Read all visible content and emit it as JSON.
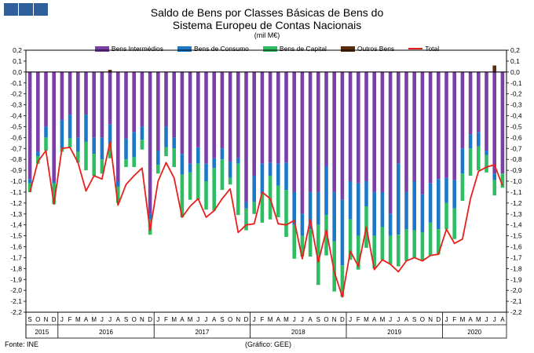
{
  "title_line1": "Saldo de Bens por Classes Básicas de Bens do",
  "title_line2": "Sistema Europeu de Contas Nacionais",
  "subtitle": "(mil M€)",
  "source": "Fonte: INE",
  "credit": "(Gráfico: GEE)",
  "colors": {
    "intermedios": "#7b3fa8",
    "consumo": "#1e78c8",
    "capital": "#2ebd63",
    "outros": "#5a2d0c",
    "total": "#e8201c",
    "logo": "#2e5e9c"
  },
  "chart_data": {
    "type": "bar",
    "stacked": true,
    "ylim": [
      -2.2,
      0.2
    ],
    "yticks": [
      "0,2",
      "0,1",
      "0,0",
      "-0,1",
      "-0,2",
      "-0,3",
      "-0,4",
      "-0,5",
      "-0,6",
      "-0,7",
      "-0,8",
      "-0,9",
      "-1,0",
      "-1,1",
      "-1,2",
      "-1,3",
      "-1,4",
      "-1,5",
      "-1,6",
      "-1,7",
      "-1,8",
      "-1,9",
      "-2,0",
      "-2,1",
      "-2,2"
    ],
    "legend": [
      "Bens Intermédios",
      "Bens de Consumo",
      "Bens de Capital",
      "Outros Bens",
      "Total"
    ],
    "categories": [
      "S",
      "O",
      "N",
      "D",
      "J",
      "F",
      "M",
      "A",
      "M",
      "J",
      "J",
      "A",
      "S",
      "O",
      "N",
      "D",
      "J",
      "F",
      "M",
      "A",
      "M",
      "J",
      "J",
      "A",
      "S",
      "O",
      "N",
      "D",
      "J",
      "F",
      "M",
      "A",
      "M",
      "J",
      "J",
      "A",
      "S",
      "O",
      "N",
      "D",
      "J",
      "F",
      "M",
      "A",
      "M",
      "J",
      "J",
      "A",
      "S",
      "O",
      "N",
      "D",
      "J",
      "F",
      "M",
      "A",
      "M",
      "J",
      "J",
      "A"
    ],
    "years": [
      {
        "label": "2015",
        "start": 0,
        "count": 4
      },
      {
        "label": "2016",
        "start": 4,
        "count": 12
      },
      {
        "label": "2017",
        "start": 16,
        "count": 12
      },
      {
        "label": "2018",
        "start": 28,
        "count": 12
      },
      {
        "label": "2019",
        "start": 40,
        "count": 12
      },
      {
        "label": "2020",
        "start": 52,
        "count": 8
      }
    ],
    "series": [
      {
        "name": "Bens Intermédios",
        "values": [
          -0.98,
          -0.73,
          -0.5,
          -1.0,
          -0.44,
          -0.39,
          -0.6,
          -0.39,
          -0.6,
          -0.6,
          -0.48,
          -1.0,
          -0.61,
          -0.55,
          -0.5,
          -1.3,
          -0.72,
          -0.5,
          -0.6,
          -0.75,
          -0.84,
          -0.69,
          -0.84,
          -0.79,
          -0.7,
          -0.82,
          -0.79,
          -1.19,
          -0.95,
          -0.84,
          -0.83,
          -0.84,
          -0.83,
          -1.1,
          -1.3,
          -1.1,
          -1.1,
          -0.86,
          -1.1,
          -1.17,
          -1.0,
          -1.02,
          -1.0,
          -1.1,
          -1.1,
          -1.3,
          -0.84,
          -1.1,
          -1.0,
          -1.12,
          -1.02,
          -0.98,
          -0.97,
          -0.99,
          -0.7,
          -0.57,
          -0.55,
          -0.72,
          -0.93,
          -0.93
        ]
      },
      {
        "name": "Bens de Consumo",
        "values": [
          -0.04,
          -0.04,
          -0.1,
          -0.02,
          -0.26,
          -0.22,
          -0.13,
          -0.25,
          -0.15,
          -0.2,
          -0.18,
          -0.05,
          -0.19,
          -0.23,
          -0.12,
          -0.05,
          -0.13,
          -0.19,
          -0.1,
          -0.19,
          -0.08,
          -0.15,
          -0.16,
          -0.09,
          -0.1,
          -0.15,
          -0.05,
          -0.06,
          -0.24,
          -0.27,
          -0.12,
          -0.2,
          -0.25,
          -0.3,
          -0.2,
          -0.34,
          -0.3,
          -0.45,
          -0.45,
          -0.6,
          -0.35,
          -0.48,
          -0.23,
          -0.4,
          -0.32,
          -0.2,
          -0.65,
          -0.34,
          -0.45,
          -0.35,
          -0.36,
          -0.46,
          -0.23,
          -0.26,
          -0.23,
          -0.13,
          -0.13,
          -0.04,
          -0.06,
          -0.0
        ]
      },
      {
        "name": "Bens de Capital",
        "values": [
          -0.08,
          -0.07,
          -0.12,
          -0.19,
          -0.03,
          -0.08,
          -0.1,
          -0.26,
          -0.2,
          -0.13,
          -0.13,
          -0.15,
          -0.07,
          -0.09,
          -0.09,
          -0.14,
          -0.08,
          -0.08,
          -0.17,
          -0.39,
          -0.25,
          -0.33,
          -0.26,
          -0.39,
          -0.28,
          -0.06,
          -0.47,
          -0.2,
          -0.11,
          -0.27,
          -0.4,
          -0.29,
          -0.43,
          -0.31,
          -0.19,
          -0.25,
          -0.55,
          -0.37,
          -0.46,
          -0.29,
          -0.37,
          -0.31,
          -0.38,
          -0.3,
          -0.3,
          -0.26,
          -0.29,
          -0.29,
          -0.25,
          -0.26,
          -0.3,
          -0.23,
          -0.24,
          -0.28,
          -0.25,
          -0.25,
          -0.22,
          -0.16,
          -0.14,
          -0.13
        ]
      },
      {
        "name": "Outros Bens",
        "values": [
          0.0,
          0.0,
          0.0,
          0.0,
          0.0,
          0.0,
          0.0,
          0.0,
          0.0,
          0.0,
          0.02,
          0.0,
          0.0,
          0.0,
          0.0,
          0.0,
          0.0,
          0.0,
          0.0,
          0.0,
          0.0,
          0.0,
          0.0,
          0.0,
          0.0,
          0.0,
          0.0,
          0.0,
          0.0,
          0.0,
          0.0,
          0.0,
          0.0,
          0.0,
          0.0,
          0.0,
          0.0,
          0.0,
          0.0,
          0.0,
          0.0,
          0.0,
          0.0,
          0.0,
          0.0,
          0.0,
          0.0,
          0.0,
          0.0,
          0.0,
          0.0,
          0.0,
          0.0,
          0.0,
          0.0,
          0.0,
          0.0,
          0.0,
          0.06,
          0.0
        ]
      },
      {
        "name": "Total",
        "type": "line",
        "values": [
          -1.1,
          -0.82,
          -0.72,
          -1.21,
          -0.7,
          -0.69,
          -0.83,
          -1.09,
          -0.95,
          -0.98,
          -0.64,
          -1.22,
          -1.03,
          -0.95,
          -0.88,
          -1.45,
          -1.0,
          -0.83,
          -0.97,
          -1.33,
          -1.23,
          -1.16,
          -1.33,
          -1.27,
          -1.16,
          -1.07,
          -1.47,
          -1.4,
          -1.39,
          -1.1,
          -1.16,
          -1.39,
          -1.4,
          -1.36,
          -1.71,
          -1.35,
          -1.74,
          -1.45,
          -1.83,
          -2.06,
          -1.64,
          -1.78,
          -1.42,
          -1.81,
          -1.72,
          -1.76,
          -1.83,
          -1.73,
          -1.7,
          -1.73,
          -1.68,
          -1.67,
          -1.44,
          -1.57,
          -1.53,
          -1.16,
          -0.91,
          -0.87,
          -0.85,
          -1.04
        ]
      }
    ]
  }
}
